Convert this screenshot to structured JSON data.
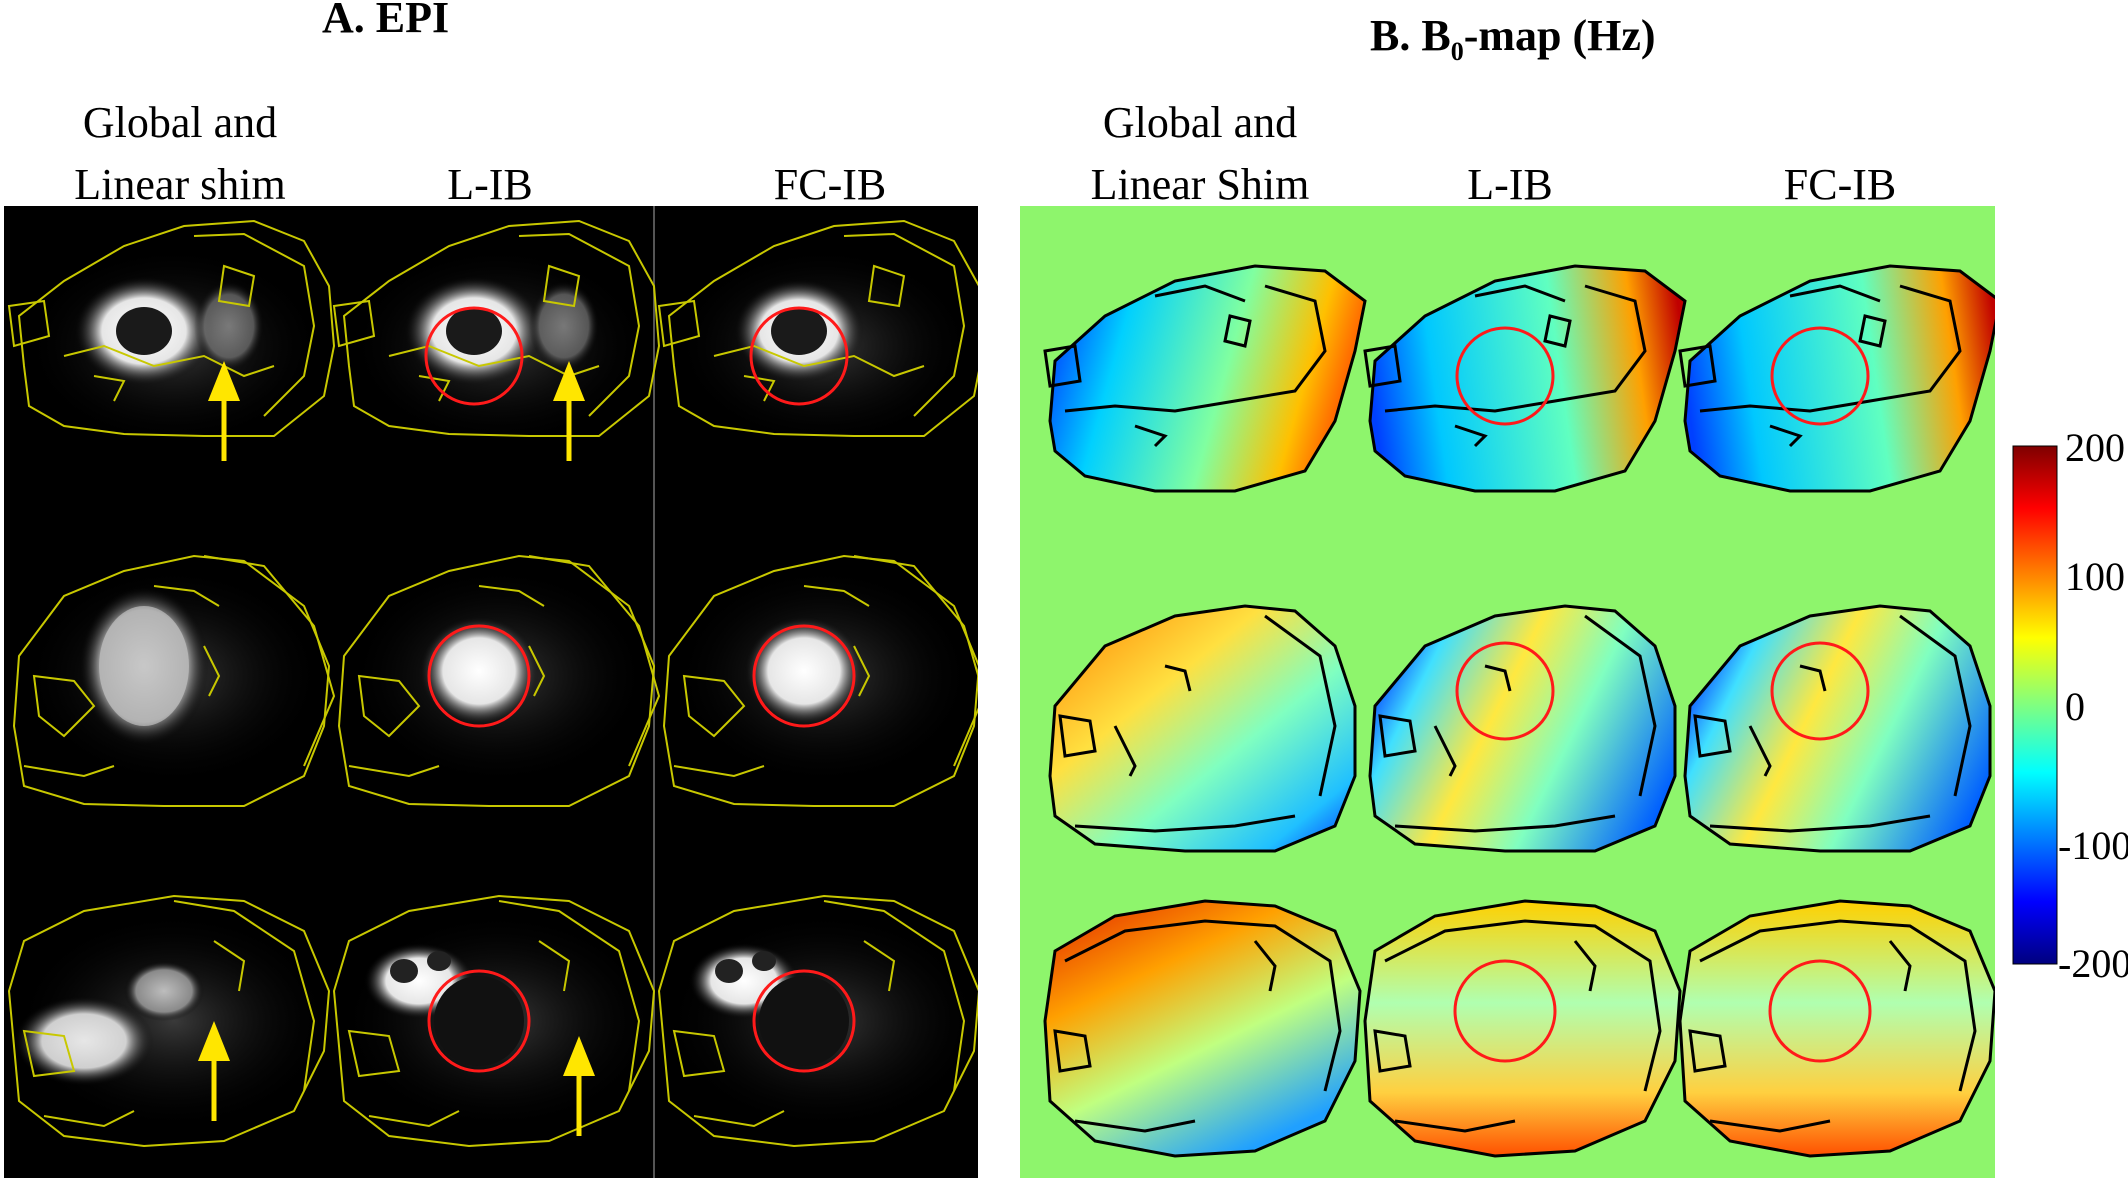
{
  "panel_a": {
    "title": "A. EPI",
    "col_labels": [
      "Global and\nLinear shim",
      "L-IB",
      "FC-IB"
    ]
  },
  "panel_b": {
    "title_prefix": "B. B",
    "title_subscript": "0",
    "title_suffix": "-map (Hz)",
    "col_labels": [
      "Global and\nLinear Shim",
      "L-IB",
      "FC-IB"
    ]
  },
  "colorbar": {
    "ticks": [
      "200",
      "100",
      "0",
      "-100",
      "-200"
    ],
    "colormap": [
      "#7f0000",
      "#ff0000",
      "#ffff00",
      "#80ff80",
      "#00ffff",
      "#0000ff",
      "#00007f"
    ]
  },
  "colors": {
    "contour_epi": "#c8c800",
    "roi_circle": "#ff1a1a",
    "arrow": "#ffe600",
    "b0_background": "#8ef56c",
    "contour_b0": "#000000"
  }
}
